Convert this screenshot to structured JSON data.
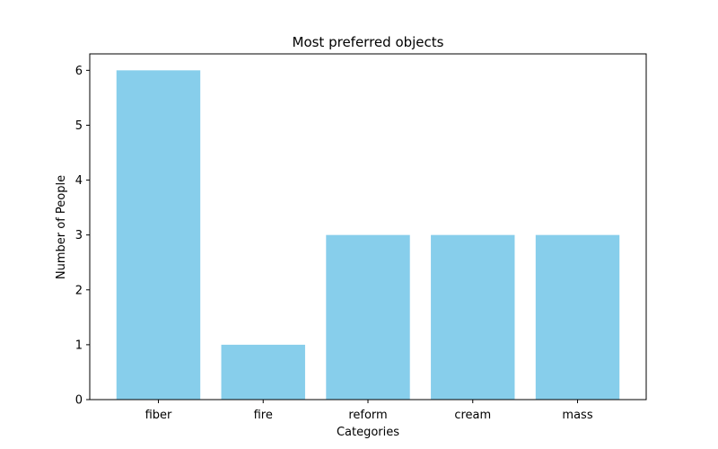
{
  "chart_data": {
    "type": "bar",
    "title": "Most preferred objects",
    "xlabel": "Categories",
    "ylabel": "Number of People",
    "categories": [
      "fiber",
      "fire",
      "reform",
      "cream",
      "mass"
    ],
    "values": [
      6,
      1,
      3,
      3,
      3
    ],
    "ylim": [
      0,
      6.3
    ],
    "yticks": [
      0,
      1,
      2,
      3,
      4,
      5,
      6
    ],
    "bar_color": "#87ceeb",
    "grid": false,
    "legend": "none"
  }
}
